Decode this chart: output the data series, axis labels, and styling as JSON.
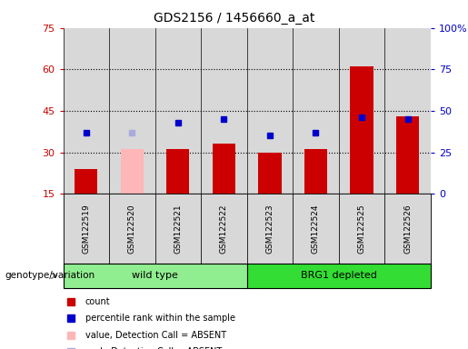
{
  "title": "GDS2156 / 1456660_a_at",
  "samples": [
    "GSM122519",
    "GSM122520",
    "GSM122521",
    "GSM122522",
    "GSM122523",
    "GSM122524",
    "GSM122525",
    "GSM122526"
  ],
  "count_values": [
    24,
    31,
    31,
    33,
    30,
    31,
    61,
    43
  ],
  "rank_values": [
    37,
    37,
    43,
    45,
    35,
    37,
    46,
    45
  ],
  "absent_mask": [
    false,
    true,
    false,
    false,
    false,
    false,
    false,
    false
  ],
  "groups": [
    {
      "label": "wild type",
      "indices": [
        0,
        1,
        2,
        3
      ],
      "color": "#90ee90"
    },
    {
      "label": "BRG1 depleted",
      "indices": [
        4,
        5,
        6,
        7
      ],
      "color": "#33dd33"
    }
  ],
  "ylim_left": [
    15,
    75
  ],
  "ylim_right": [
    0,
    100
  ],
  "left_ticks": [
    15,
    30,
    45,
    60,
    75
  ],
  "right_ticks": [
    0,
    25,
    50,
    75,
    100
  ],
  "right_tick_labels": [
    "0",
    "25",
    "50",
    "75",
    "100%"
  ],
  "bar_color": "#cc0000",
  "bar_absent_color": "#ffb6b6",
  "rank_color": "#0000cc",
  "rank_absent_color": "#aaaadd",
  "grid_color": "black",
  "tick_color_left": "#cc0000",
  "tick_color_right": "#0000cc",
  "legend_items": [
    {
      "label": "count",
      "color": "#cc0000"
    },
    {
      "label": "percentile rank within the sample",
      "color": "#0000cc"
    },
    {
      "label": "value, Detection Call = ABSENT",
      "color": "#ffb6b6"
    },
    {
      "label": "rank, Detection Call = ABSENT",
      "color": "#aaaadd"
    }
  ],
  "genotype_label": "genotype/variation",
  "plot_bg": "#d8d8d8",
  "bar_width": 0.5
}
